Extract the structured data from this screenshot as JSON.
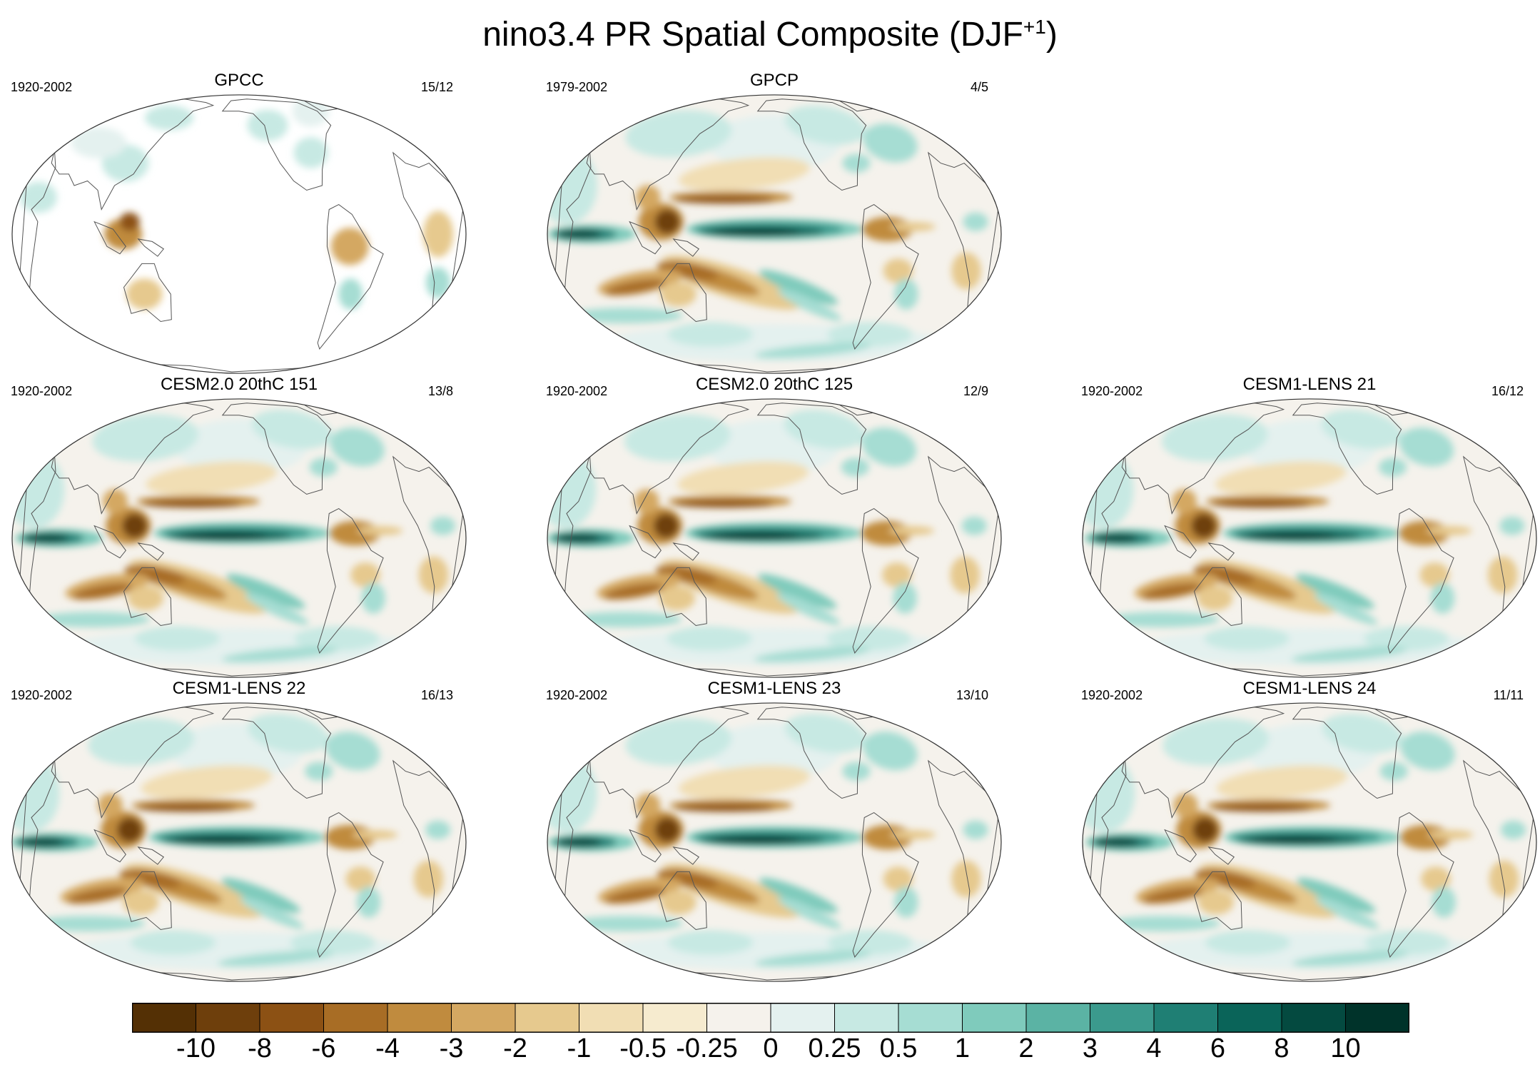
{
  "figure": {
    "title_main": "nino3.4 PR Spatial Composite (DJF",
    "title_sup": "+1",
    "title_end": ")"
  },
  "panels": [
    {
      "id": "gpcc",
      "title": "GPCC",
      "period": "1920-2002",
      "count": "15/12",
      "row": 0,
      "col": 0,
      "sparse": true
    },
    {
      "id": "gpcp",
      "title": "GPCP",
      "period": "1979-2002",
      "count": "4/5",
      "row": 0,
      "col": 1,
      "sparse": false
    },
    {
      "id": "cesm2-151",
      "title": "CESM2.0 20thC 151",
      "period": "1920-2002",
      "count": "13/8",
      "row": 1,
      "col": 0,
      "sparse": false
    },
    {
      "id": "cesm2-125",
      "title": "CESM2.0 20thC 125",
      "period": "1920-2002",
      "count": "12/9",
      "row": 1,
      "col": 1,
      "sparse": false
    },
    {
      "id": "lens21",
      "title": "CESM1-LENS 21",
      "period": "1920-2002",
      "count": "16/12",
      "row": 1,
      "col": 2,
      "sparse": false
    },
    {
      "id": "lens22",
      "title": "CESM1-LENS 22",
      "period": "1920-2002",
      "count": "16/13",
      "row": 2,
      "col": 0,
      "sparse": false
    },
    {
      "id": "lens23",
      "title": "CESM1-LENS 23",
      "period": "1920-2002",
      "count": "13/10",
      "row": 2,
      "col": 1,
      "sparse": false
    },
    {
      "id": "lens24",
      "title": "CESM1-LENS 24",
      "period": "1920-2002",
      "count": "11/11",
      "row": 2,
      "col": 2,
      "sparse": false
    }
  ],
  "colorbar": {
    "colors": [
      "#543005",
      "#6e3f0c",
      "#8c5114",
      "#a86d25",
      "#c08b3e",
      "#d4a862",
      "#e6c98e",
      "#f1deb4",
      "#f6ebcf",
      "#f5f2ec",
      "#e4f1ef",
      "#c7e9e3",
      "#a6ddd3",
      "#7fcbbc",
      "#5bb3a4",
      "#3b9a8d",
      "#1f7f74",
      "#0a6459",
      "#044a40",
      "#00332a"
    ],
    "labels": [
      "-10",
      "-8",
      "-6",
      "-4",
      "-3",
      "-2",
      "-1",
      "-0.5",
      "-0.25",
      "0",
      "0.25",
      "0.5",
      "1",
      "2",
      "3",
      "4",
      "6",
      "8",
      "10"
    ]
  }
}
